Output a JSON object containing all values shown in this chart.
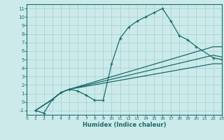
{
  "xlabel": "Humidex (Indice chaleur)",
  "bg_color": "#cceaea",
  "line_color": "#1a6b6b",
  "grid_color": "#aad4d4",
  "xlim": [
    0,
    23
  ],
  "ylim": [
    -1.5,
    11.5
  ],
  "xticks": [
    0,
    1,
    2,
    3,
    4,
    5,
    6,
    7,
    8,
    9,
    10,
    11,
    12,
    13,
    14,
    15,
    16,
    17,
    18,
    19,
    20,
    21,
    22,
    23
  ],
  "yticks": [
    -1,
    0,
    1,
    2,
    3,
    4,
    5,
    6,
    7,
    8,
    9,
    10,
    11
  ],
  "curve_marked": {
    "x": [
      1,
      2,
      3,
      4,
      5,
      6,
      7,
      8,
      9,
      10,
      11,
      12,
      13,
      14,
      15,
      16,
      17,
      18,
      19,
      20,
      22,
      23
    ],
    "y": [
      -1,
      -1.3,
      0.3,
      1.1,
      1.5,
      1.3,
      0.8,
      0.2,
      0.2,
      4.5,
      7.5,
      8.8,
      9.5,
      10.0,
      10.5,
      11.0,
      9.5,
      7.8,
      7.3,
      6.5,
      5.2,
      5.0
    ]
  },
  "curve_lines": [
    {
      "x": [
        1,
        3,
        4,
        5,
        22,
        23
      ],
      "y": [
        -1,
        0.3,
        1.1,
        1.5,
        6.5,
        6.5
      ]
    },
    {
      "x": [
        1,
        3,
        4,
        5,
        22,
        23
      ],
      "y": [
        -1,
        0.3,
        1.1,
        1.5,
        5.5,
        5.3
      ]
    },
    {
      "x": [
        1,
        3,
        4,
        5,
        22,
        23
      ],
      "y": [
        -1,
        0.3,
        1.1,
        1.5,
        4.5,
        4.5
      ]
    }
  ]
}
